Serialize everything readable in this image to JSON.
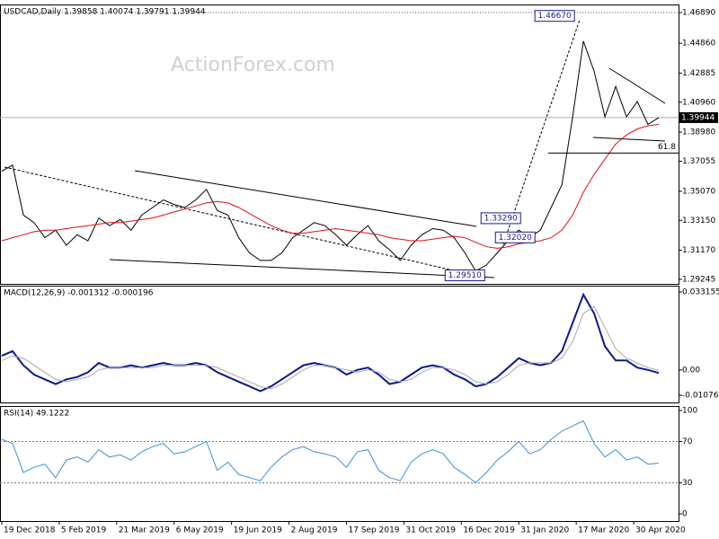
{
  "chart_data": [
    {
      "type": "line",
      "title": "USDCAD,Daily  1.39858 1.40074 1.39791 1.39944",
      "watermark": "ActionForex.com",
      "x": [
        0,
        6,
        12,
        18,
        24,
        30,
        36,
        42,
        48,
        54,
        60,
        66,
        72,
        78,
        84,
        90,
        96,
        102,
        108,
        114,
        120,
        126,
        132,
        138,
        144,
        150,
        156,
        162,
        168,
        174,
        180,
        186,
        192,
        198,
        204,
        210,
        216,
        222,
        228,
        234,
        240,
        246,
        252,
        258,
        264,
        270,
        276,
        282,
        288,
        294,
        300,
        306,
        312,
        318,
        324,
        330,
        336,
        342,
        348,
        354,
        360,
        366
      ],
      "xlim": [
        -1,
        377
      ],
      "ylim": [
        1.28948,
        1.47425
      ],
      "yticks": [
        {
          "value": 1.4689,
          "label": "1.46890"
        },
        {
          "value": 1.4486,
          "label": "1.44860"
        },
        1.42885,
        {
          "value": 1.4096,
          "label": "1.40960"
        },
        {
          "value": 1.3898,
          "label": "1.38980"
        },
        1.37055,
        {
          "value": 1.3507,
          "label": "1.35070"
        },
        {
          "value": 1.3315,
          "label": "1.33150"
        },
        {
          "value": 1.3117,
          "label": "1.31170"
        },
        1.29245
      ],
      "grid": false,
      "current": 1.39944,
      "series": [
        {
          "color": "#000000",
          "values": [
            1.364,
            1.368,
            1.335,
            1.33,
            1.32,
            1.325,
            1.315,
            1.322,
            1.318,
            1.333,
            1.328,
            1.332,
            1.325,
            1.335,
            1.34,
            1.345,
            1.342,
            1.34,
            1.345,
            1.352,
            1.338,
            1.335,
            1.32,
            1.31,
            1.305,
            1.305,
            1.31,
            1.32,
            1.325,
            1.33,
            1.328,
            1.322,
            1.315,
            1.322,
            1.328,
            1.318,
            1.312,
            1.305,
            1.315,
            1.322,
            1.326,
            1.325,
            1.32,
            1.31,
            1.298,
            1.302,
            1.31,
            1.318,
            1.325,
            1.32,
            1.325,
            1.34,
            1.355,
            1.4,
            1.45,
            1.43,
            1.4,
            1.42,
            1.4,
            1.41,
            1.395,
            1.39944
          ]
        },
        {
          "color": "#e01010",
          "values": [
            1.318,
            1.32,
            1.322,
            1.324,
            1.325,
            1.325,
            1.326,
            1.327,
            1.328,
            1.329,
            1.33,
            1.33,
            1.331,
            1.332,
            1.333,
            1.335,
            1.337,
            1.339,
            1.341,
            1.343,
            1.344,
            1.343,
            1.34,
            1.336,
            1.332,
            1.328,
            1.325,
            1.323,
            1.323,
            1.324,
            1.325,
            1.326,
            1.325,
            1.324,
            1.323,
            1.322,
            1.32,
            1.319,
            1.318,
            1.318,
            1.319,
            1.32,
            1.321,
            1.32,
            1.317,
            1.314,
            1.313,
            1.314,
            1.316,
            1.317,
            1.318,
            1.32,
            1.325,
            1.335,
            1.35,
            1.362,
            1.372,
            1.382,
            1.388,
            1.392,
            1.394,
            1.395
          ]
        }
      ],
      "annotations": [
        {
          "label": "1.46670",
          "value": 1.4667,
          "x": 320
        },
        {
          "label": "1.33290",
          "value": 1.3329,
          "x": 290
        },
        {
          "label": "1.32020",
          "value": 1.3202,
          "x": 298
        },
        {
          "label": "1.29510",
          "value": 1.2951,
          "x": 270
        },
        {
          "label": "61.8",
          "value": 1.376,
          "x": 366,
          "kind": "fib"
        }
      ]
    },
    {
      "type": "line",
      "title": "MACD(12,26,9) -0.001312 -0.000196",
      "ylim": [
        -0.013825,
        0.035829
      ],
      "yticks": [
        0.033155,
        {
          "value": 0,
          "label": "0.00"
        },
        -0.010769
      ],
      "series": [
        {
          "color": "#0a1a8c",
          "width": 2,
          "values": [
            0.006,
            0.008,
            0.002,
            -0.002,
            -0.004,
            -0.006,
            -0.004,
            -0.003,
            -0.001,
            0.003,
            0.001,
            0.001,
            0.002,
            0.001,
            0.002,
            0.003,
            0.002,
            0.002,
            0.003,
            0.002,
            -0.001,
            -0.003,
            -0.005,
            -0.007,
            -0.009,
            -0.007,
            -0.004,
            -0.001,
            0.002,
            0.003,
            0.002,
            0.001,
            -0.002,
            0,
            0.001,
            -0.002,
            -0.006,
            -0.005,
            -0.002,
            0.001,
            0.002,
            0.001,
            -0.002,
            -0.004,
            -0.007,
            -0.006,
            -0.003,
            0.001,
            0.005,
            0.003,
            0.002,
            0.003,
            0.008,
            0.02,
            0.032,
            0.024,
            0.01,
            0.004,
            0.004,
            0.001,
            0,
            -0.001312
          ]
        },
        {
          "color": "#a8a8a8",
          "width": 1,
          "values": [
            0.004,
            0.006,
            0.005,
            0.002,
            -0.001,
            -0.004,
            -0.005,
            -0.004,
            -0.003,
            0,
            0.001,
            0.001,
            0.001,
            0.001,
            0.001,
            0.002,
            0.002,
            0.002,
            0.002,
            0.002,
            0.001,
            -0.001,
            -0.003,
            -0.005,
            -0.007,
            -0.008,
            -0.006,
            -0.003,
            0,
            0.002,
            0.002,
            0.001,
            0,
            -0.001,
            0,
            -0.001,
            -0.004,
            -0.005,
            -0.004,
            -0.001,
            0.001,
            0.001,
            0,
            -0.002,
            -0.005,
            -0.006,
            -0.005,
            -0.002,
            0.002,
            0.003,
            0.003,
            0.003,
            0.005,
            0.012,
            0.024,
            0.027,
            0.018,
            0.009,
            0.005,
            0.003,
            0.001,
            -0.000196
          ]
        }
      ]
    },
    {
      "type": "line",
      "title": "RSI(14) 49.1222",
      "ylim": [
        -7,
        104.3
      ],
      "yticks": [
        100,
        70,
        30,
        0
      ],
      "levels": [
        70,
        30
      ],
      "series": [
        {
          "color": "#3a8fd9",
          "width": 1,
          "values": [
            72,
            68,
            40,
            45,
            48,
            35,
            52,
            55,
            50,
            62,
            55,
            57,
            52,
            60,
            65,
            68,
            58,
            60,
            65,
            70,
            42,
            50,
            38,
            35,
            32,
            45,
            55,
            62,
            65,
            60,
            58,
            55,
            45,
            60,
            62,
            42,
            35,
            32,
            50,
            58,
            62,
            58,
            45,
            38,
            30,
            40,
            52,
            60,
            70,
            58,
            62,
            72,
            80,
            85,
            90,
            68,
            55,
            62,
            52,
            55,
            48,
            49.1222
          ]
        }
      ],
      "xticks": [
        {
          "value": 0,
          "label": "19 Dec 2018"
        },
        {
          "value": 32,
          "label": "5 Feb 2019"
        },
        {
          "value": 64,
          "label": "21 Mar 2019"
        },
        {
          "value": 96,
          "label": "6 May 2019"
        },
        {
          "value": 128,
          "label": "19 Jun 2019"
        },
        {
          "value": 160,
          "label": "2 Aug 2019"
        },
        {
          "value": 192,
          "label": "17 Sep 2019"
        },
        {
          "value": 224,
          "label": "31 Oct 2019"
        },
        {
          "value": 256,
          "label": "16 Dec 2019"
        },
        {
          "value": 288,
          "label": "31 Jan 2020"
        },
        {
          "value": 320,
          "label": "17 Mar 2020"
        },
        {
          "value": 352,
          "label": "30 Apr 2020"
        }
      ]
    }
  ]
}
